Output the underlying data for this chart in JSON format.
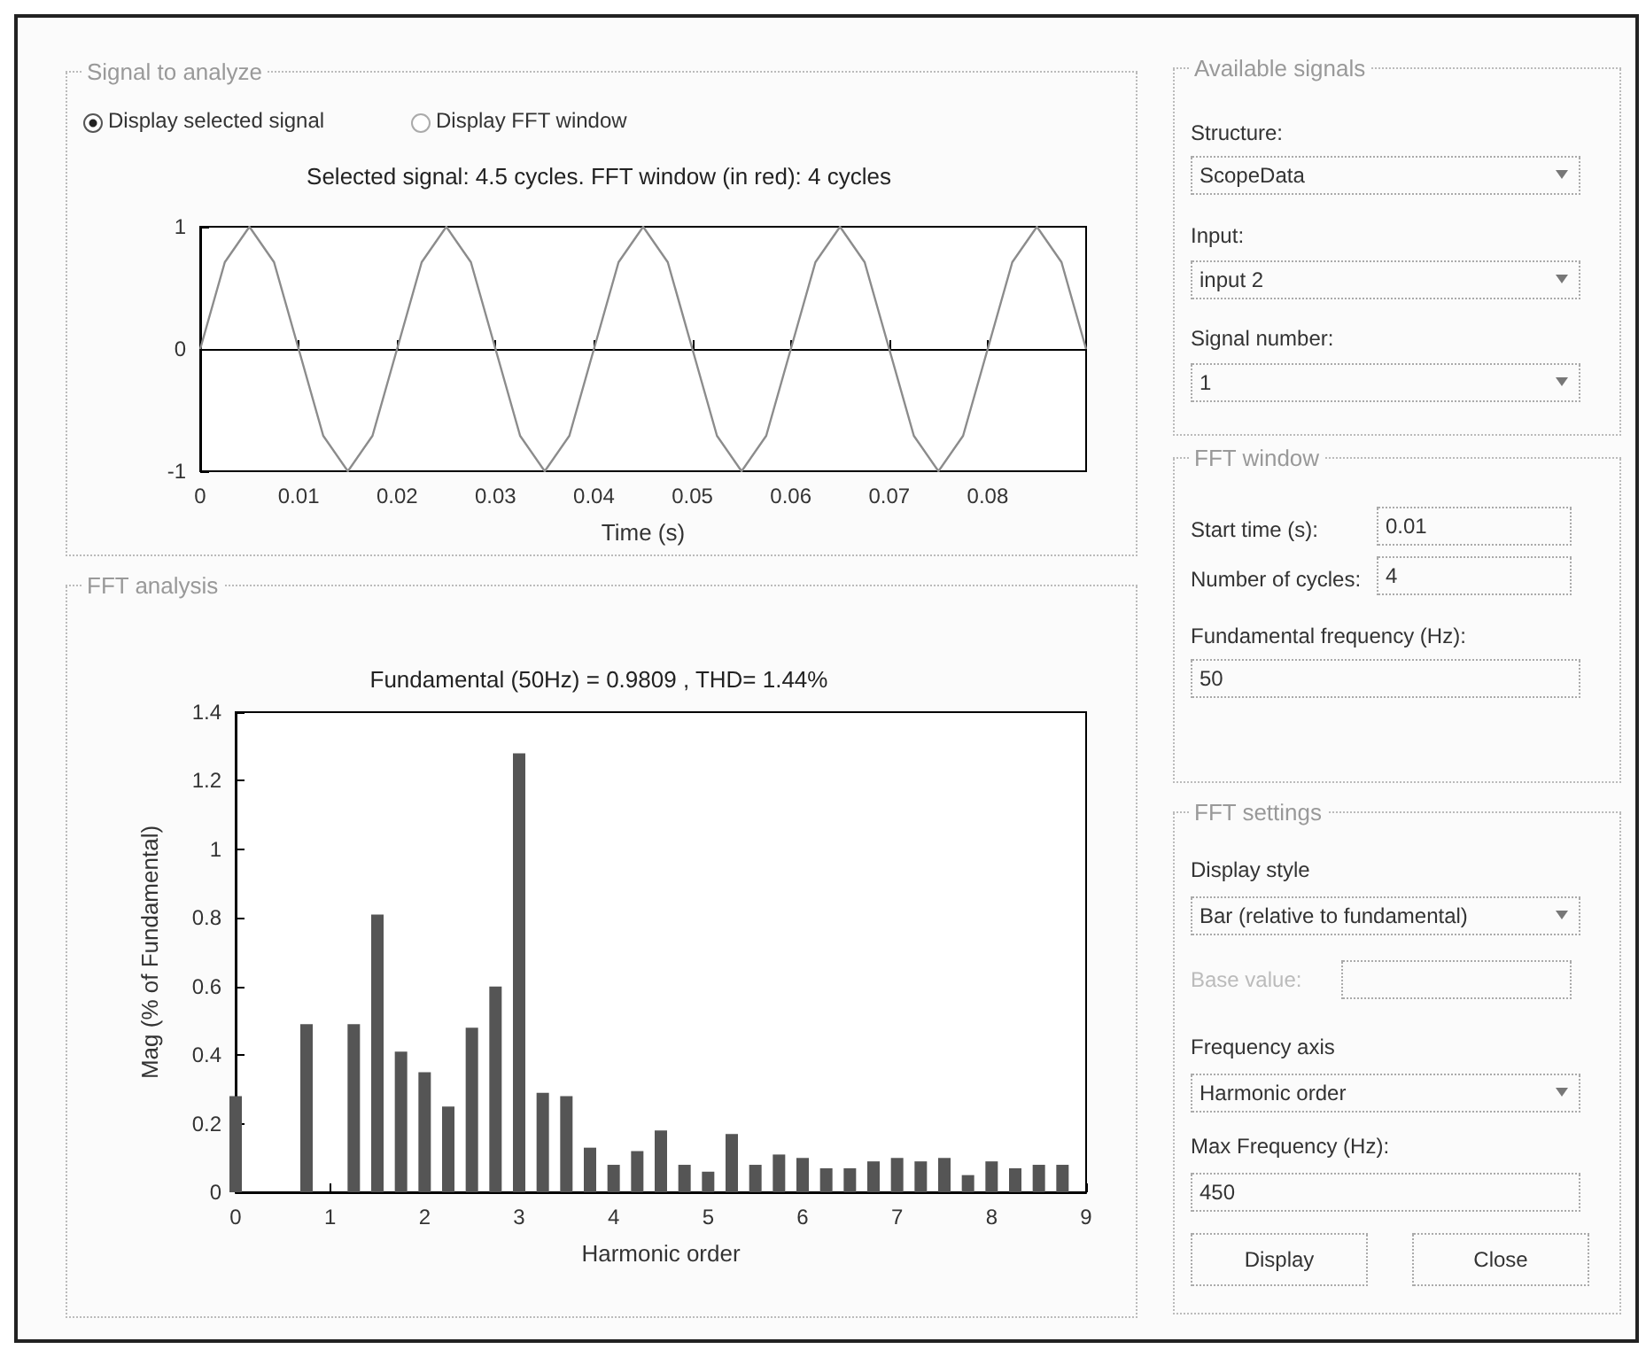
{
  "chart_data": [
    {
      "type": "line",
      "title": "Selected signal: 4.5 cycles. FFT window (in red): 4 cycles",
      "xlabel": "Time (s)",
      "annotations": [
        "Signal to analyze",
        "Display selected signal",
        "Display FFT window"
      ],
      "x": [
        0,
        0.0025,
        0.005,
        0.0075,
        0.01,
        0.0125,
        0.015,
        0.0175,
        0.02,
        0.0225,
        0.025,
        0.0275,
        0.03,
        0.0325,
        0.035,
        0.0375,
        0.04,
        0.0425,
        0.045,
        0.0475,
        0.05,
        0.0525,
        0.055,
        0.0575,
        0.06,
        0.0625,
        0.065,
        0.0675,
        0.07,
        0.0725,
        0.075,
        0.0775,
        0.08,
        0.0825,
        0.085,
        0.0875,
        0.09
      ],
      "series": [
        {
          "color": "#8c8c8c",
          "values": [
            0,
            0.71,
            1,
            0.71,
            0,
            -0.71,
            -1,
            -0.71,
            0,
            0.71,
            1,
            0.71,
            0,
            -0.71,
            -1,
            -0.71,
            0,
            0.71,
            1,
            0.71,
            0,
            -0.71,
            -1,
            -0.71,
            0,
            0.71,
            1,
            0.71,
            0,
            -0.71,
            -1,
            -0.71,
            0,
            0.71,
            1,
            0.71,
            0
          ]
        }
      ],
      "xlim": [
        0,
        0.09
      ],
      "xticks": [
        0,
        0.01,
        0.02,
        0.03,
        0.04,
        0.05,
        0.06,
        0.07,
        0.08
      ],
      "ylim": [
        -1,
        1
      ],
      "yticks": [
        -1,
        0,
        1
      ]
    },
    {
      "type": "bar",
      "title": "Fundamental (50Hz) = 0.9809 , THD= 1.44%",
      "xlabel": "Harmonic order",
      "ylabel": "Mag (% of Fundamental)",
      "annotations": [
        "FFT analysis"
      ],
      "x": [
        0,
        0.25,
        0.5,
        0.75,
        1,
        1.25,
        1.5,
        1.75,
        2,
        2.25,
        2.5,
        2.75,
        3,
        3.25,
        3.5,
        3.75,
        4,
        4.25,
        4.5,
        4.75,
        5,
        5.25,
        5.5,
        5.75,
        6,
        6.25,
        6.5,
        6.75,
        7,
        7.25,
        7.5,
        7.75,
        8,
        8.25,
        8.5,
        8.75
      ],
      "values": [
        0.28,
        null,
        null,
        0.49,
        null,
        0.49,
        0.81,
        0.41,
        0.35,
        0.25,
        0.48,
        0.6,
        1.28,
        0.29,
        0.28,
        0.13,
        0.08,
        0.12,
        0.18,
        0.08,
        0.06,
        0.17,
        0.08,
        0.11,
        0.1,
        0.07,
        0.07,
        0.09,
        0.1,
        0.09,
        0.1,
        0.05,
        0.09,
        0.07,
        0.08,
        0.08
      ],
      "color": "#555555",
      "xlim": [
        0,
        9
      ],
      "xticks": [
        0,
        1,
        2,
        3,
        4,
        5,
        6,
        7,
        8,
        9
      ],
      "ylim": [
        0,
        1.4
      ],
      "yticks": [
        0,
        0.2,
        0.4,
        0.6,
        0.8,
        1,
        1.2,
        1.4
      ]
    },
    {
      "type": "other",
      "annotations": [
        "Available signals",
        "Structure:",
        "ScopeData",
        "Input:",
        "input 2",
        "Signal number:",
        "1",
        "FFT window",
        "Start time (s):",
        "0.01",
        "Number of cycles:",
        "4",
        "Fundamental frequency (Hz):",
        "50",
        "FFT settings",
        "Display style",
        "Bar (relative to fundamental)",
        "Base value:",
        "Frequency axis",
        "Harmonic order",
        "Max Frequency (Hz):",
        "450",
        "Display",
        "Close"
      ]
    }
  ]
}
